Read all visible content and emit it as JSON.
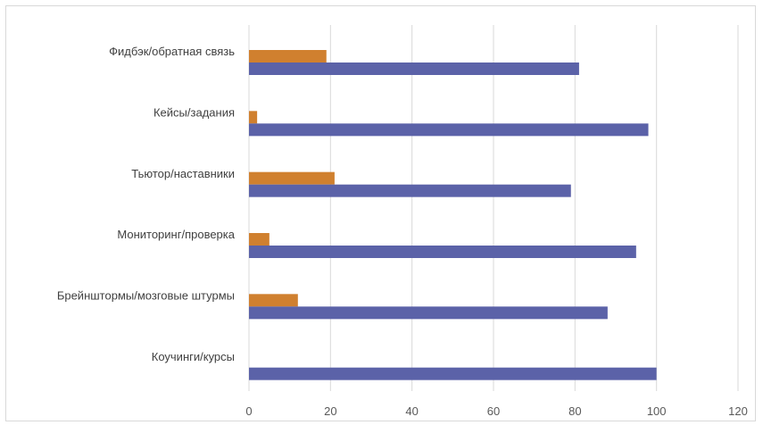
{
  "chart_data": {
    "type": "bar",
    "orientation": "horizontal",
    "categories": [
      "Фидбэк/обратная связь",
      "Кейсы/задания",
      "Тьютор/наставники",
      "Мониторинг/проверка",
      "Брейнштормы/мозговые штурмы",
      "Коучинги/курсы"
    ],
    "series": [
      {
        "values": [
          81,
          98,
          79,
          95,
          88,
          100
        ],
        "color": "#5b62a8"
      },
      {
        "values": [
          19,
          2,
          21,
          5,
          12,
          0
        ],
        "color": "#d0802f"
      }
    ],
    "xlim": [
      0,
      120
    ],
    "x_ticks": [
      "0",
      "20",
      "40",
      "60",
      "80",
      "100",
      "120"
    ],
    "grid": true,
    "legend": "none",
    "title": "",
    "xlabel": "",
    "ylabel": ""
  }
}
